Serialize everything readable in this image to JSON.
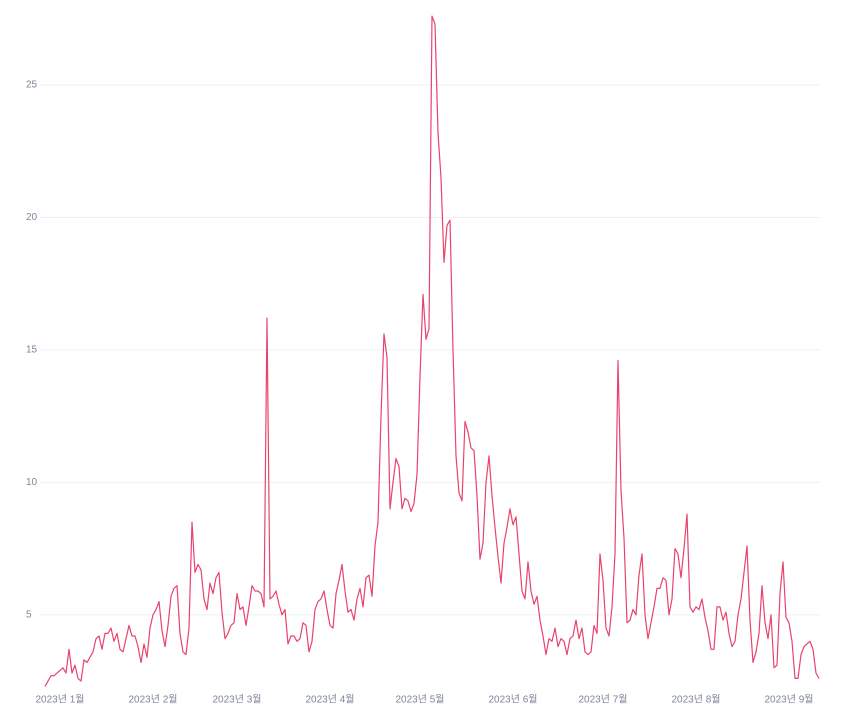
{
  "chart_data": {
    "type": "line",
    "x": [
      -5,
      -4,
      -3,
      -2,
      -1,
      0,
      1,
      2,
      3,
      4,
      5,
      6,
      7,
      8,
      9,
      10,
      11,
      12,
      13,
      14,
      15,
      16,
      17,
      18,
      19,
      20,
      21,
      22,
      23,
      24,
      25,
      26,
      27,
      28,
      29,
      30,
      31,
      32,
      33,
      34,
      35,
      36,
      37,
      38,
      39,
      40,
      41,
      42,
      43,
      44,
      45,
      46,
      47,
      48,
      49,
      50,
      51,
      52,
      53,
      54,
      55,
      56,
      57,
      58,
      59,
      60,
      61,
      62,
      63,
      64,
      65,
      66,
      67,
      68,
      69,
      70,
      71,
      72,
      73,
      74,
      75,
      76,
      77,
      78,
      79,
      80,
      81,
      82,
      83,
      84,
      85,
      86,
      87,
      88,
      89,
      90,
      91,
      92,
      93,
      94,
      95,
      96,
      97,
      98,
      99,
      100,
      101,
      102,
      103,
      104,
      105,
      106,
      107,
      108,
      109,
      110,
      111,
      112,
      113,
      114,
      115,
      116,
      117,
      118,
      119,
      120,
      121,
      122,
      123,
      124,
      125,
      126,
      127,
      128,
      129,
      130,
      131,
      132,
      133,
      134,
      135,
      136,
      137,
      138,
      139,
      140,
      141,
      142,
      143,
      144,
      145,
      146,
      147,
      148,
      149,
      150,
      151,
      152,
      153,
      154,
      155,
      156,
      157,
      158,
      159,
      160,
      161,
      162,
      163,
      164,
      165,
      166,
      167,
      168,
      169,
      170,
      171,
      172,
      173,
      174,
      175,
      176,
      177,
      178,
      179,
      180,
      181,
      182,
      183,
      184,
      185,
      186,
      187,
      188,
      189,
      190,
      191,
      192,
      193,
      194,
      195,
      196,
      197,
      198,
      199,
      200,
      201,
      202,
      203,
      204,
      205,
      206,
      207,
      208,
      209,
      210,
      211,
      212,
      213,
      214,
      215,
      216,
      217,
      218,
      219,
      220,
      221,
      222,
      223,
      224,
      225,
      226,
      227,
      228,
      229,
      230,
      231,
      232,
      233,
      234,
      235,
      236,
      237,
      238,
      239,
      240,
      241,
      242,
      243,
      244,
      245,
      246,
      247,
      248,
      249,
      250,
      251,
      252,
      253
    ],
    "values": [
      2.3,
      2.5,
      2.7,
      2.7,
      2.8,
      2.9,
      3.0,
      2.8,
      3.7,
      2.8,
      3.1,
      2.6,
      2.5,
      3.3,
      3.2,
      3.4,
      3.6,
      4.1,
      4.2,
      3.7,
      4.3,
      4.3,
      4.5,
      4.0,
      4.3,
      3.7,
      3.6,
      4.1,
      4.6,
      4.2,
      4.2,
      3.8,
      3.2,
      3.9,
      3.4,
      4.5,
      5.0,
      5.2,
      5.5,
      4.4,
      3.8,
      4.6,
      5.7,
      6.0,
      6.1,
      4.3,
      3.6,
      3.5,
      4.5,
      8.5,
      6.6,
      6.9,
      6.7,
      5.6,
      5.2,
      6.2,
      5.8,
      6.4,
      6.6,
      5.1,
      4.1,
      4.3,
      4.6,
      4.7,
      5.8,
      5.2,
      5.3,
      4.6,
      5.3,
      6.1,
      5.9,
      5.9,
      5.8,
      5.3,
      16.2,
      5.6,
      5.7,
      5.9,
      5.4,
      5.0,
      5.2,
      3.9,
      4.2,
      4.2,
      4.0,
      4.1,
      4.7,
      4.6,
      3.6,
      4.0,
      5.2,
      5.5,
      5.6,
      5.9,
      5.2,
      4.6,
      4.5,
      5.8,
      6.3,
      6.9,
      5.9,
      5.1,
      5.2,
      4.8,
      5.6,
      6.0,
      5.3,
      6.4,
      6.5,
      5.7,
      7.6,
      8.5,
      12.5,
      15.6,
      14.7,
      9.0,
      10.0,
      10.9,
      10.6,
      9.0,
      9.4,
      9.3,
      8.9,
      9.2,
      10.3,
      14.0,
      17.1,
      15.4,
      15.8,
      27.6,
      27.3,
      23.2,
      21.5,
      18.3,
      19.7,
      19.9,
      15.0,
      11.0,
      9.6,
      9.3,
      12.3,
      11.9,
      11.3,
      11.2,
      9.5,
      7.1,
      7.7,
      10.0,
      11.0,
      9.5,
      8.3,
      7.2,
      6.2,
      7.7,
      8.3,
      9.0,
      8.4,
      8.7,
      7.3,
      5.9,
      5.6,
      7.0,
      5.9,
      5.4,
      5.7,
      4.8,
      4.2,
      3.5,
      4.1,
      4.0,
      4.5,
      3.8,
      4.1,
      4.0,
      3.5,
      4.1,
      4.2,
      4.8,
      4.1,
      4.5,
      3.6,
      3.5,
      3.6,
      4.6,
      4.3,
      7.3,
      6.3,
      4.5,
      4.2,
      5.3,
      7.3,
      14.6,
      9.7,
      7.9,
      4.7,
      4.8,
      5.2,
      5.0,
      6.5,
      7.3,
      5.0,
      4.1,
      4.7,
      5.3,
      6.0,
      6.0,
      6.4,
      6.3,
      5.0,
      5.6,
      7.5,
      7.3,
      6.4,
      7.5,
      8.8,
      5.3,
      5.1,
      5.3,
      5.2,
      5.6,
      4.9,
      4.4,
      3.7,
      3.7,
      5.3,
      5.3,
      4.8,
      5.1,
      4.3,
      3.8,
      4.0,
      5.0,
      5.6,
      6.6,
      7.6,
      4.8,
      3.2,
      3.6,
      4.3,
      6.1,
      4.7,
      4.1,
      5.0,
      3.0,
      3.1,
      5.8,
      7.0,
      4.9,
      4.7,
      4.0,
      2.6,
      2.6,
      3.5,
      3.8,
      3.9,
      4.0,
      3.7,
      2.8,
      2.6
    ],
    "color": "#e8436c",
    "xlim": [
      -5,
      253
    ],
    "xticks": [
      {
        "value": 0,
        "label": "2023년 1월"
      },
      {
        "value": 31,
        "label": "2023년 2월"
      },
      {
        "value": 59,
        "label": "2023년 3월"
      },
      {
        "value": 90,
        "label": "2023년 4월"
      },
      {
        "value": 120,
        "label": "2023년 5월"
      },
      {
        "value": 151,
        "label": "2023년 6월"
      },
      {
        "value": 181,
        "label": "2023년 7월"
      },
      {
        "value": 212,
        "label": "2023년 8월"
      },
      {
        "value": 243,
        "label": "2023년 9월"
      }
    ],
    "ylim": [
      2.2,
      27.7
    ],
    "yticks": [
      5,
      10,
      15,
      20,
      25
    ],
    "grid": true
  }
}
